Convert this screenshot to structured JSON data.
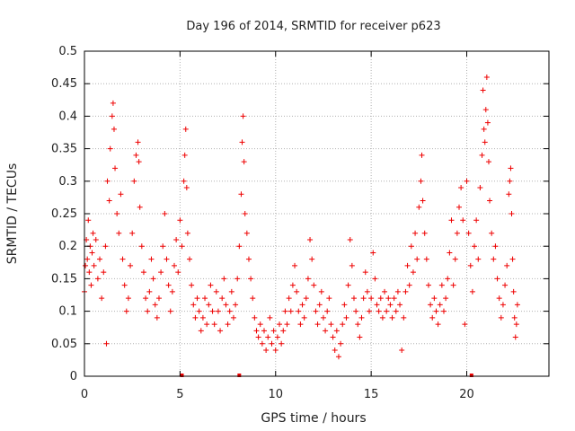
{
  "chart_data": {
    "type": "scatter",
    "title": "Day 196 of 2014, SRMTID for receiver p623",
    "xlabel": "GPS time / hours",
    "ylabel": "SRMTID / TECUs",
    "xlim": [
      0,
      24.3
    ],
    "ylim": [
      0,
      0.5
    ],
    "xticks": [
      0,
      5,
      10,
      15,
      20
    ],
    "xtick_labels": [
      "0",
      "5",
      "10",
      "15",
      "20"
    ],
    "yticks": [
      0,
      0.05,
      0.1,
      0.15,
      0.2,
      0.25,
      0.3,
      0.35,
      0.4,
      0.45,
      0.5
    ],
    "ytick_labels": [
      "0",
      "0.05",
      "0.1",
      "0.15",
      "0.2",
      "0.25",
      "0.3",
      "0.35",
      "0.4",
      "0.45",
      "0.5"
    ],
    "grid": true,
    "marker": "+",
    "color": "#ee0000",
    "series": [
      {
        "name": "SRMTID",
        "points": [
          [
            0.0,
            0.13
          ],
          [
            0.05,
            0.17
          ],
          [
            0.1,
            0.21
          ],
          [
            0.15,
            0.18
          ],
          [
            0.2,
            0.24
          ],
          [
            0.25,
            0.16
          ],
          [
            0.3,
            0.2
          ],
          [
            0.35,
            0.14
          ],
          [
            0.4,
            0.19
          ],
          [
            0.45,
            0.22
          ],
          [
            0.5,
            0.17
          ],
          [
            0.6,
            0.21
          ],
          [
            0.7,
            0.15
          ],
          [
            0.8,
            0.18
          ],
          [
            0.9,
            0.12
          ],
          [
            1.0,
            0.16
          ],
          [
            1.1,
            0.2
          ],
          [
            1.15,
            0.05
          ],
          [
            1.2,
            0.3
          ],
          [
            1.3,
            0.27
          ],
          [
            1.35,
            0.35
          ],
          [
            1.45,
            0.4
          ],
          [
            1.5,
            0.42
          ],
          [
            1.55,
            0.38
          ],
          [
            1.6,
            0.32
          ],
          [
            1.7,
            0.25
          ],
          [
            1.8,
            0.22
          ],
          [
            1.9,
            0.28
          ],
          [
            2.0,
            0.18
          ],
          [
            2.1,
            0.14
          ],
          [
            2.2,
            0.1
          ],
          [
            2.3,
            0.12
          ],
          [
            2.4,
            0.17
          ],
          [
            2.5,
            0.22
          ],
          [
            2.6,
            0.3
          ],
          [
            2.7,
            0.34
          ],
          [
            2.8,
            0.36
          ],
          [
            2.85,
            0.33
          ],
          [
            2.9,
            0.26
          ],
          [
            3.0,
            0.2
          ],
          [
            3.1,
            0.16
          ],
          [
            3.2,
            0.12
          ],
          [
            3.3,
            0.1
          ],
          [
            3.4,
            0.13
          ],
          [
            3.5,
            0.18
          ],
          [
            3.6,
            0.15
          ],
          [
            3.7,
            0.11
          ],
          [
            3.8,
            0.09
          ],
          [
            3.9,
            0.12
          ],
          [
            4.0,
            0.16
          ],
          [
            4.1,
            0.2
          ],
          [
            4.2,
            0.25
          ],
          [
            4.3,
            0.18
          ],
          [
            4.4,
            0.14
          ],
          [
            4.5,
            0.1
          ],
          [
            4.6,
            0.13
          ],
          [
            4.7,
            0.17
          ],
          [
            4.8,
            0.21
          ],
          [
            4.9,
            0.16
          ],
          [
            5.0,
            0.24
          ],
          [
            5.1,
            0.2
          ],
          [
            5.2,
            0.3
          ],
          [
            5.25,
            0.34
          ],
          [
            5.3,
            0.38
          ],
          [
            5.35,
            0.29
          ],
          [
            5.4,
            0.22
          ],
          [
            5.5,
            0.18
          ],
          [
            5.6,
            0.14
          ],
          [
            5.7,
            0.11
          ],
          [
            5.8,
            0.09
          ],
          [
            5.9,
            0.12
          ],
          [
            6.0,
            0.1
          ],
          [
            6.1,
            0.07
          ],
          [
            6.2,
            0.09
          ],
          [
            6.3,
            0.12
          ],
          [
            6.4,
            0.08
          ],
          [
            6.5,
            0.11
          ],
          [
            6.6,
            0.14
          ],
          [
            6.7,
            0.1
          ],
          [
            6.8,
            0.08
          ],
          [
            6.9,
            0.13
          ],
          [
            7.0,
            0.1
          ],
          [
            7.1,
            0.07
          ],
          [
            7.2,
            0.12
          ],
          [
            7.3,
            0.15
          ],
          [
            7.4,
            0.11
          ],
          [
            7.5,
            0.08
          ],
          [
            7.6,
            0.1
          ],
          [
            7.7,
            0.13
          ],
          [
            7.8,
            0.09
          ],
          [
            7.9,
            0.11
          ],
          [
            8.0,
            0.15
          ],
          [
            8.1,
            0.2
          ],
          [
            8.2,
            0.28
          ],
          [
            8.25,
            0.36
          ],
          [
            8.3,
            0.4
          ],
          [
            8.35,
            0.33
          ],
          [
            8.4,
            0.25
          ],
          [
            8.5,
            0.22
          ],
          [
            8.6,
            0.18
          ],
          [
            8.7,
            0.15
          ],
          [
            8.8,
            0.12
          ],
          [
            8.9,
            0.09
          ],
          [
            9.0,
            0.07
          ],
          [
            9.1,
            0.06
          ],
          [
            9.2,
            0.08
          ],
          [
            9.3,
            0.05
          ],
          [
            9.4,
            0.07
          ],
          [
            9.5,
            0.04
          ],
          [
            9.6,
            0.06
          ],
          [
            9.7,
            0.09
          ],
          [
            9.8,
            0.05
          ],
          [
            9.9,
            0.07
          ],
          [
            10.0,
            0.04
          ],
          [
            10.1,
            0.06
          ],
          [
            10.2,
            0.08
          ],
          [
            10.3,
            0.05
          ],
          [
            10.4,
            0.07
          ],
          [
            10.5,
            0.1
          ],
          [
            10.6,
            0.08
          ],
          [
            10.7,
            0.12
          ],
          [
            10.8,
            0.1
          ],
          [
            10.9,
            0.14
          ],
          [
            11.0,
            0.17
          ],
          [
            11.1,
            0.13
          ],
          [
            11.2,
            0.1
          ],
          [
            11.3,
            0.08
          ],
          [
            11.4,
            0.11
          ],
          [
            11.5,
            0.09
          ],
          [
            11.6,
            0.12
          ],
          [
            11.7,
            0.15
          ],
          [
            11.8,
            0.21
          ],
          [
            11.9,
            0.18
          ],
          [
            12.0,
            0.14
          ],
          [
            12.1,
            0.1
          ],
          [
            12.2,
            0.08
          ],
          [
            12.3,
            0.11
          ],
          [
            12.4,
            0.13
          ],
          [
            12.5,
            0.09
          ],
          [
            12.6,
            0.07
          ],
          [
            12.7,
            0.1
          ],
          [
            12.8,
            0.12
          ],
          [
            12.9,
            0.08
          ],
          [
            13.0,
            0.06
          ],
          [
            13.1,
            0.04
          ],
          [
            13.2,
            0.07
          ],
          [
            13.3,
            0.03
          ],
          [
            13.4,
            0.05
          ],
          [
            13.5,
            0.08
          ],
          [
            13.6,
            0.11
          ],
          [
            13.7,
            0.09
          ],
          [
            13.8,
            0.14
          ],
          [
            13.9,
            0.21
          ],
          [
            14.0,
            0.17
          ],
          [
            14.1,
            0.12
          ],
          [
            14.2,
            0.1
          ],
          [
            14.3,
            0.08
          ],
          [
            14.4,
            0.06
          ],
          [
            14.5,
            0.09
          ],
          [
            14.6,
            0.12
          ],
          [
            14.7,
            0.16
          ],
          [
            14.8,
            0.13
          ],
          [
            14.9,
            0.1
          ],
          [
            15.0,
            0.12
          ],
          [
            15.1,
            0.19
          ],
          [
            15.2,
            0.15
          ],
          [
            15.3,
            0.11
          ],
          [
            15.4,
            0.1
          ],
          [
            15.5,
            0.12
          ],
          [
            15.6,
            0.09
          ],
          [
            15.7,
            0.13
          ],
          [
            15.8,
            0.1
          ],
          [
            15.9,
            0.12
          ],
          [
            16.0,
            0.11
          ],
          [
            16.1,
            0.09
          ],
          [
            16.2,
            0.12
          ],
          [
            16.3,
            0.1
          ],
          [
            16.4,
            0.13
          ],
          [
            16.5,
            0.11
          ],
          [
            16.6,
            0.04
          ],
          [
            16.7,
            0.09
          ],
          [
            16.8,
            0.13
          ],
          [
            16.9,
            0.17
          ],
          [
            17.0,
            0.14
          ],
          [
            17.1,
            0.2
          ],
          [
            17.2,
            0.16
          ],
          [
            17.3,
            0.22
          ],
          [
            17.4,
            0.18
          ],
          [
            17.5,
            0.26
          ],
          [
            17.6,
            0.3
          ],
          [
            17.65,
            0.34
          ],
          [
            17.7,
            0.27
          ],
          [
            17.8,
            0.22
          ],
          [
            17.9,
            0.18
          ],
          [
            18.0,
            0.14
          ],
          [
            18.1,
            0.11
          ],
          [
            18.2,
            0.09
          ],
          [
            18.3,
            0.12
          ],
          [
            18.4,
            0.1
          ],
          [
            18.5,
            0.08
          ],
          [
            18.6,
            0.11
          ],
          [
            18.7,
            0.14
          ],
          [
            18.8,
            0.1
          ],
          [
            18.9,
            0.12
          ],
          [
            19.0,
            0.15
          ],
          [
            19.1,
            0.19
          ],
          [
            19.2,
            0.24
          ],
          [
            19.3,
            0.14
          ],
          [
            19.4,
            0.18
          ],
          [
            19.5,
            0.22
          ],
          [
            19.6,
            0.26
          ],
          [
            19.7,
            0.29
          ],
          [
            19.8,
            0.24
          ],
          [
            19.9,
            0.08
          ],
          [
            20.0,
            0.3
          ],
          [
            20.1,
            0.22
          ],
          [
            20.2,
            0.17
          ],
          [
            20.3,
            0.13
          ],
          [
            20.4,
            0.2
          ],
          [
            20.5,
            0.24
          ],
          [
            20.6,
            0.18
          ],
          [
            20.7,
            0.29
          ],
          [
            20.8,
            0.34
          ],
          [
            20.85,
            0.44
          ],
          [
            20.9,
            0.38
          ],
          [
            20.95,
            0.36
          ],
          [
            21.0,
            0.41
          ],
          [
            21.05,
            0.46
          ],
          [
            21.1,
            0.39
          ],
          [
            21.15,
            0.33
          ],
          [
            21.2,
            0.27
          ],
          [
            21.3,
            0.22
          ],
          [
            21.4,
            0.18
          ],
          [
            21.5,
            0.2
          ],
          [
            21.6,
            0.15
          ],
          [
            21.7,
            0.12
          ],
          [
            21.8,
            0.09
          ],
          [
            21.9,
            0.11
          ],
          [
            22.0,
            0.14
          ],
          [
            22.1,
            0.17
          ],
          [
            22.2,
            0.28
          ],
          [
            22.25,
            0.3
          ],
          [
            22.3,
            0.32
          ],
          [
            22.35,
            0.25
          ],
          [
            22.4,
            0.18
          ],
          [
            22.45,
            0.13
          ],
          [
            22.5,
            0.09
          ],
          [
            22.55,
            0.06
          ],
          [
            22.6,
            0.08
          ],
          [
            22.65,
            0.11
          ]
        ]
      }
    ],
    "baseline_markers": [
      5.1,
      8.1,
      20.25
    ]
  }
}
